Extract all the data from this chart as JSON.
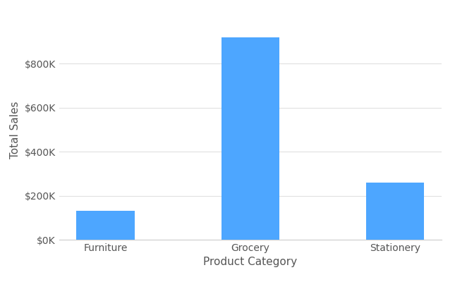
{
  "categories": [
    "Furniture",
    "Grocery",
    "Stationery"
  ],
  "values": [
    130000,
    920000,
    260000
  ],
  "bar_color": "#4DA6FF",
  "xlabel": "Product Category",
  "ylabel": "Total Sales",
  "ylim": [
    0,
    1000000
  ],
  "yticks": [
    0,
    200000,
    400000,
    600000,
    800000
  ],
  "ytick_labels": [
    "$0K",
    "$200K",
    "$400K",
    "$600K",
    "$800K"
  ],
  "background_color": "#ffffff",
  "grid_color": "#e0e0e0",
  "bar_width": 0.4,
  "xlabel_fontsize": 11,
  "ylabel_fontsize": 11,
  "tick_fontsize": 10,
  "label_color": "#555555"
}
